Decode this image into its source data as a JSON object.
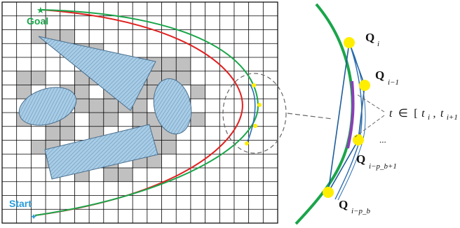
{
  "labels": {
    "goal": "Goal",
    "start": "Start",
    "dots": "..."
  },
  "q_labels": [
    {
      "main": "Q",
      "sub": "i"
    },
    {
      "main": "Q",
      "sub": "i−1"
    },
    {
      "main": "Q",
      "sub": "i−p_b+1"
    },
    {
      "main": "Q",
      "sub": "i−p_b"
    }
  ],
  "interval": {
    "t": "t",
    "in": "∈",
    "open": "[",
    "t_start": "t",
    "t_start_sub": "i",
    "comma": ",",
    "t_end": "t",
    "t_end_sub": "i+1",
    "close": "]"
  },
  "colors": {
    "grid_line": "#000000",
    "occupied_cell": "#c0c0c0",
    "obstacle_fill": "#a9cde6",
    "obstacle_stroke": "#4a6f8e",
    "path_red": "#e02020",
    "path_green": "#1aa54a",
    "path_blue": "#2d6fb0",
    "control_point": "#ffee00",
    "segment_purple": "#8a3fb8",
    "goal_text": "#1aa54a",
    "start_text": "#2a9bd8"
  }
}
